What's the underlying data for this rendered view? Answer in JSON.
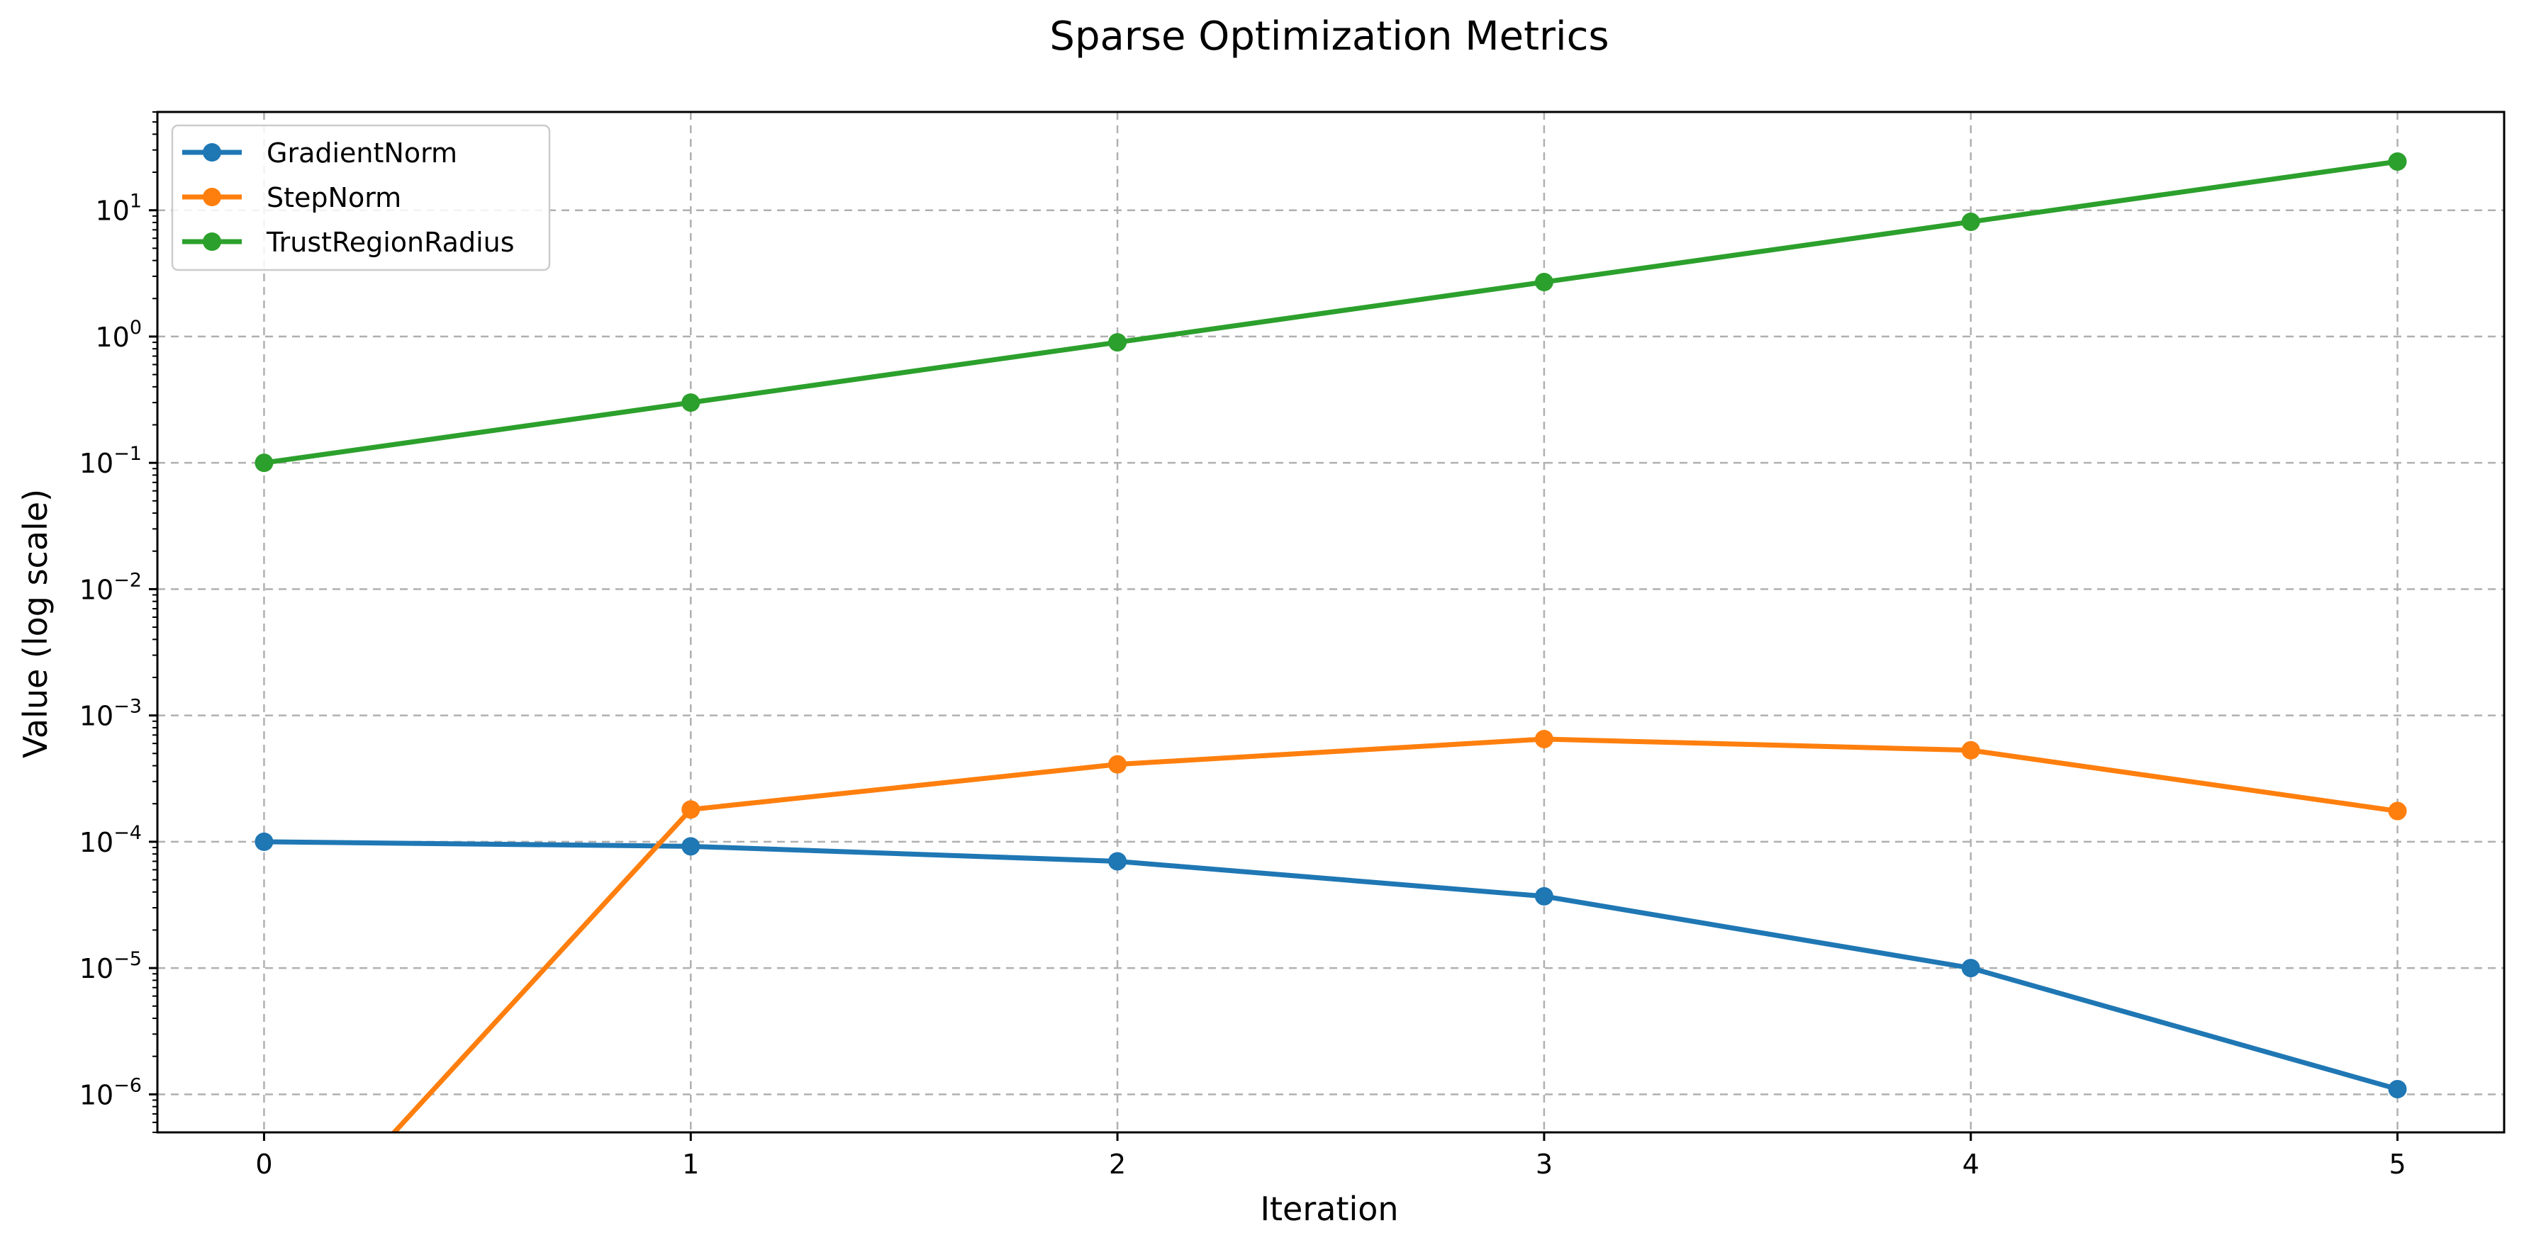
{
  "chart_data": {
    "type": "line",
    "title": "Sparse Optimization Metrics",
    "xlabel": "Iteration",
    "ylabel": "Value (log scale)",
    "yscale": "log",
    "x": [
      0,
      1,
      2,
      3,
      4,
      5
    ],
    "xlim": [
      -0.25,
      5.25
    ],
    "ylim": [
      5e-07,
      60
    ],
    "xticks": [
      "0",
      "1",
      "2",
      "3",
      "4",
      "5"
    ],
    "yticks": [
      {
        "base": "10",
        "exp": "−6",
        "value": 1e-06
      },
      {
        "base": "10",
        "exp": "−5",
        "value": 1e-05
      },
      {
        "base": "10",
        "exp": "−4",
        "value": 0.0001
      },
      {
        "base": "10",
        "exp": "−3",
        "value": 0.001
      },
      {
        "base": "10",
        "exp": "−2",
        "value": 0.01
      },
      {
        "base": "10",
        "exp": "−1",
        "value": 0.1
      },
      {
        "base": "10",
        "exp": "0",
        "value": 1
      },
      {
        "base": "10",
        "exp": "1",
        "value": 10
      }
    ],
    "grid": true,
    "legend_position": "top-left",
    "series": [
      {
        "name": "GradientNorm",
        "color": "#1f77b4",
        "values": [
          0.0001,
          9.2e-05,
          7e-05,
          3.7e-05,
          1e-05,
          1.1e-06
        ]
      },
      {
        "name": "StepNorm",
        "color": "#ff7f0e",
        "values": [
          0,
          0.00018,
          0.00041,
          0.00065,
          0.00053,
          0.000175
        ]
      },
      {
        "name": "TrustRegionRadius",
        "color": "#2ca02c",
        "values": [
          0.1,
          0.3,
          0.9,
          2.7,
          8.1,
          24.3
        ]
      }
    ]
  }
}
